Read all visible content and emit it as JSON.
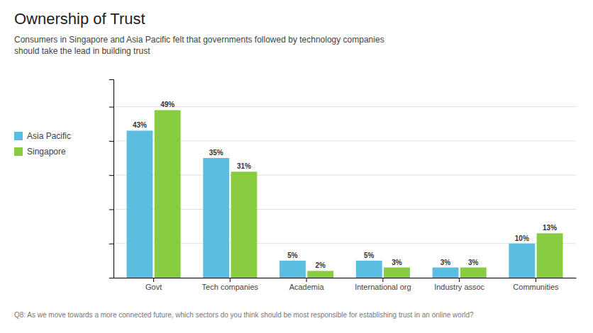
{
  "chart_data": {
    "type": "bar",
    "title": "Ownership of Trust",
    "subtitle": "Consumers in Singapore and Asia Pacific felt that governments followed by technology companies\nshould take the lead in building trust",
    "categories": [
      "Govt",
      "Tech companies",
      "Academia",
      "International org",
      "Industry assoc",
      "Communities"
    ],
    "series": [
      {
        "name": "Asia Pacific",
        "color": "#5BBDE0",
        "values": [
          43,
          35,
          5,
          5,
          3,
          10
        ],
        "value_labels": [
          "43%",
          "35%",
          "5%",
          "5%",
          "3%",
          "10%"
        ]
      },
      {
        "name": "Singapore",
        "color": "#88CC40",
        "values": [
          49,
          31,
          2,
          3,
          3,
          13
        ],
        "value_labels": [
          "49%",
          "31%",
          "2%",
          "3%",
          "3%",
          "13%"
        ]
      }
    ],
    "ylim": [
      0,
      58
    ],
    "yticks": [
      0,
      10,
      20,
      30,
      40,
      50
    ],
    "grid": true,
    "data_labels": true,
    "tick_labels": "x",
    "annotations": [
      "Q8: As we move towards a more connected future, which sectors do you think should be most responsible for establishing trust in an online world?"
    ]
  }
}
